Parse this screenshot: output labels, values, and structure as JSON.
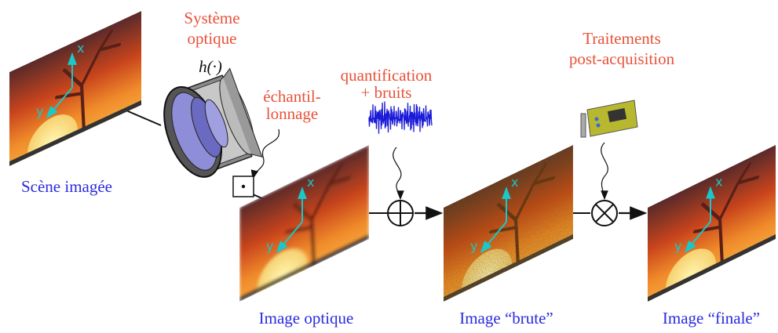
{
  "optics": {
    "title_line1": "Système",
    "title_line2": "optique",
    "psf": "h(·)"
  },
  "sampling": {
    "line1": "échantil-",
    "line2": "lonnage"
  },
  "noise": {
    "line1": "quantification",
    "line2": "+ bruits"
  },
  "processing": {
    "line1": "Traitements",
    "line2": "post-acquisition"
  },
  "images": [
    {
      "caption": "Scène imagée",
      "axis_x": "x",
      "axis_y": "y"
    },
    {
      "caption": "Image optique",
      "axis_x": "x",
      "axis_y": "y"
    },
    {
      "caption": "Image “brute”",
      "axis_x": "x",
      "axis_y": "y"
    },
    {
      "caption": "Image “finale”",
      "axis_x": "x",
      "axis_y": "y"
    }
  ]
}
